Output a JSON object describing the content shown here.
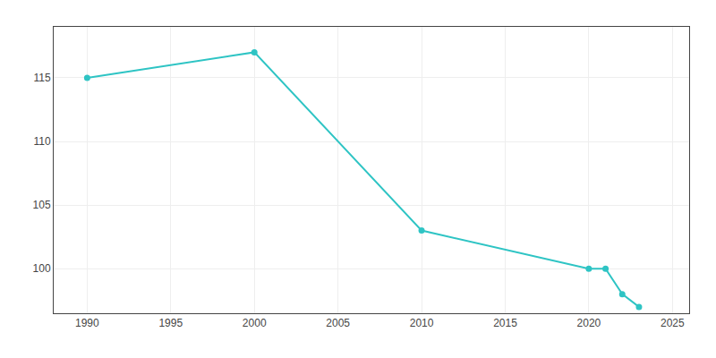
{
  "chart_data": {
    "type": "line",
    "x": [
      1990,
      2000,
      2010,
      2020,
      2021,
      2022,
      2023
    ],
    "values": [
      115,
      117,
      103,
      100,
      100,
      98,
      97
    ],
    "color": "#2ec4c4",
    "marker": "circle",
    "xlim": [
      1988,
      2026
    ],
    "xticks": [
      1990,
      1995,
      2000,
      2005,
      2010,
      2015,
      2020,
      2025
    ],
    "ylim": [
      96.5,
      119
    ],
    "yticks": [
      100,
      105,
      110,
      115
    ],
    "grid": true
  }
}
